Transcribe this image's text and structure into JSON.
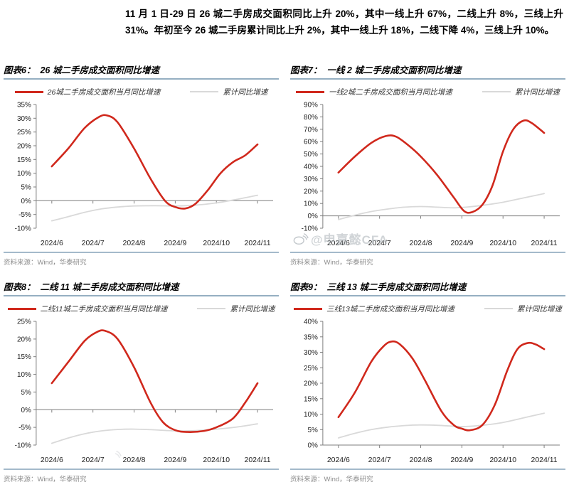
{
  "header": {
    "paragraph": "11 月 1 日-29 日 26 城二手房成交面积同比上升 20%，其中一线上升 67%，二线上升 8%，三线上升 31%。年初至今 26 城二手房累计同比上升 2%，其中一线上升 18%，二线下降 4%，三线上升 10%。"
  },
  "watermark": {
    "text": "@申嘉懿CFA",
    "icon": "weibo-swoosh-icon"
  },
  "colors": {
    "series_red": "#D0281C",
    "series_gray": "#D9D9D9",
    "title_underline": "#95AFC2",
    "axis_line": "#7F7F7F",
    "axis_label": "#1F1F1F",
    "source_text": "#8C8C8C"
  },
  "chart_data": [
    {
      "type": "line",
      "fig_label": "图表6：",
      "title": "26 城二手房成交面积同比增速",
      "x_tick_labels": [
        "2024/6",
        "2024/7",
        "2024/8",
        "2024/9",
        "2024/10",
        "2024/11"
      ],
      "ylim": [
        -10,
        35
      ],
      "ytick_step": 5,
      "ylabel_suffix": "%",
      "grid": false,
      "legend_position": "top",
      "source": "资料来源：Wind，华泰研究",
      "series": [
        {
          "name": "26城二手房成交面积当月同比增速",
          "color": "#D0281C",
          "width": 2.6,
          "points": [
            [
              6.0,
              12.5
            ],
            [
              6.4,
              19
            ],
            [
              6.8,
              26.5
            ],
            [
              7.15,
              30.5
            ],
            [
              7.35,
              31
            ],
            [
              7.6,
              28.5
            ],
            [
              8.0,
              19
            ],
            [
              8.4,
              8
            ],
            [
              8.75,
              0
            ],
            [
              9.0,
              -2.3
            ],
            [
              9.25,
              -2.8
            ],
            [
              9.5,
              -1
            ],
            [
              9.8,
              4
            ],
            [
              10.1,
              10
            ],
            [
              10.4,
              14
            ],
            [
              10.7,
              16.5
            ],
            [
              11.0,
              20.5
            ]
          ]
        },
        {
          "name": "累计同比增速",
          "color": "#D9D9D9",
          "width": 1.8,
          "points": [
            [
              6.0,
              -7.3
            ],
            [
              6.4,
              -5.8
            ],
            [
              6.8,
              -4.2
            ],
            [
              7.2,
              -3
            ],
            [
              7.6,
              -2.3
            ],
            [
              8.0,
              -1.9
            ],
            [
              8.5,
              -1.8
            ],
            [
              9.0,
              -1.9
            ],
            [
              9.5,
              -1.6
            ],
            [
              10.0,
              -0.8
            ],
            [
              10.5,
              0.5
            ],
            [
              11.0,
              2
            ]
          ]
        }
      ]
    },
    {
      "type": "line",
      "fig_label": "图表7：",
      "title": "一线 2 城二手房成交面积同比增速",
      "x_tick_labels": [
        "2024/6",
        "2024/7",
        "2024/8",
        "2024/9",
        "2024/10",
        "2024/11"
      ],
      "ylim": [
        -10,
        90
      ],
      "ytick_step": 10,
      "ylabel_suffix": "%",
      "grid": false,
      "legend_position": "top",
      "source": "资料来源：Wind，华泰研究",
      "series": [
        {
          "name": "一线2城二手房成交面积当月同比增速",
          "color": "#D0281C",
          "width": 2.6,
          "points": [
            [
              6.0,
              35
            ],
            [
              6.4,
              48
            ],
            [
              6.8,
              59
            ],
            [
              7.15,
              64.5
            ],
            [
              7.4,
              64
            ],
            [
              7.7,
              57
            ],
            [
              8.0,
              48
            ],
            [
              8.4,
              33
            ],
            [
              8.8,
              15
            ],
            [
              9.05,
              4
            ],
            [
              9.25,
              3
            ],
            [
              9.5,
              9
            ],
            [
              9.75,
              25
            ],
            [
              10.0,
              52
            ],
            [
              10.25,
              70
            ],
            [
              10.5,
              77
            ],
            [
              10.7,
              75
            ],
            [
              11.0,
              67
            ]
          ]
        },
        {
          "name": "累计同比增速",
          "color": "#D9D9D9",
          "width": 1.8,
          "points": [
            [
              6.0,
              -3
            ],
            [
              6.4,
              0.5
            ],
            [
              6.8,
              3.5
            ],
            [
              7.2,
              5.5
            ],
            [
              7.6,
              7
            ],
            [
              8.0,
              7.5
            ],
            [
              8.4,
              7
            ],
            [
              8.8,
              6.5
            ],
            [
              9.1,
              7
            ],
            [
              9.5,
              8.5
            ],
            [
              10.0,
              11
            ],
            [
              10.5,
              14.5
            ],
            [
              11.0,
              18
            ]
          ]
        }
      ]
    },
    {
      "type": "line",
      "fig_label": "图表8：",
      "title": "二线 11 城二手房成交面积同比增速",
      "x_tick_labels": [
        "2024/6",
        "2024/7",
        "2024/8",
        "2024/9",
        "2024/10",
        "2024/11"
      ],
      "ylim": [
        -10,
        25
      ],
      "ytick_step": 5,
      "ylabel_suffix": "%",
      "grid": false,
      "legend_position": "top",
      "source": "资料来源：Wind，华泰研究",
      "series": [
        {
          "name": "二线11城二手房成交面积当月同比增速",
          "color": "#D0281C",
          "width": 2.6,
          "points": [
            [
              6.0,
              7.5
            ],
            [
              6.4,
              13.5
            ],
            [
              6.8,
              19.5
            ],
            [
              7.1,
              22
            ],
            [
              7.3,
              22.3
            ],
            [
              7.6,
              20
            ],
            [
              8.0,
              12
            ],
            [
              8.4,
              2
            ],
            [
              8.7,
              -3.5
            ],
            [
              9.0,
              -5.8
            ],
            [
              9.3,
              -6.3
            ],
            [
              9.7,
              -6
            ],
            [
              10.0,
              -5
            ],
            [
              10.4,
              -2.5
            ],
            [
              10.7,
              2
            ],
            [
              11.0,
              7.5
            ]
          ]
        },
        {
          "name": "累计同比增速",
          "color": "#D9D9D9",
          "width": 1.8,
          "points": [
            [
              6.0,
              -9.5
            ],
            [
              6.4,
              -8
            ],
            [
              6.8,
              -6.8
            ],
            [
              7.2,
              -6
            ],
            [
              7.6,
              -5.6
            ],
            [
              8.0,
              -5.5
            ],
            [
              8.5,
              -5.7
            ],
            [
              9.0,
              -6
            ],
            [
              9.5,
              -5.9
            ],
            [
              10.0,
              -5.5
            ],
            [
              10.5,
              -4.9
            ],
            [
              11.0,
              -4
            ]
          ]
        }
      ]
    },
    {
      "type": "line",
      "fig_label": "图表9：",
      "title": "三线 13 城二手房成交面积同比增速",
      "x_tick_labels": [
        "2024/6",
        "2024/7",
        "2024/8",
        "2024/9",
        "2024/10",
        "2024/11"
      ],
      "ylim": [
        0,
        40
      ],
      "ytick_step": 5,
      "ylabel_suffix": "%",
      "grid": false,
      "legend_position": "top",
      "source": "资料来源：Wind，华泰研究",
      "series": [
        {
          "name": "三线13城二手房成交面积当月同比增速",
          "color": "#D0281C",
          "width": 2.6,
          "points": [
            [
              6.0,
              9
            ],
            [
              6.4,
              17
            ],
            [
              6.8,
              27
            ],
            [
              7.1,
              32
            ],
            [
              7.3,
              33.5
            ],
            [
              7.5,
              32.5
            ],
            [
              7.8,
              28
            ],
            [
              8.1,
              21
            ],
            [
              8.5,
              11
            ],
            [
              8.8,
              6.5
            ],
            [
              9.0,
              5.3
            ],
            [
              9.2,
              4.8
            ],
            [
              9.5,
              6.5
            ],
            [
              9.8,
              13
            ],
            [
              10.1,
              24
            ],
            [
              10.35,
              31
            ],
            [
              10.6,
              33
            ],
            [
              10.8,
              32.5
            ],
            [
              11.0,
              31
            ]
          ]
        },
        {
          "name": "累计同比增速",
          "color": "#D9D9D9",
          "width": 1.8,
          "points": [
            [
              6.0,
              2.3
            ],
            [
              6.4,
              3.8
            ],
            [
              6.8,
              5
            ],
            [
              7.2,
              5.8
            ],
            [
              7.6,
              6.3
            ],
            [
              8.0,
              6.5
            ],
            [
              8.4,
              6.4
            ],
            [
              8.8,
              6.1
            ],
            [
              9.1,
              6
            ],
            [
              9.5,
              6.4
            ],
            [
              10.0,
              7.3
            ],
            [
              10.5,
              8.8
            ],
            [
              11.0,
              10.3
            ]
          ]
        }
      ]
    }
  ]
}
